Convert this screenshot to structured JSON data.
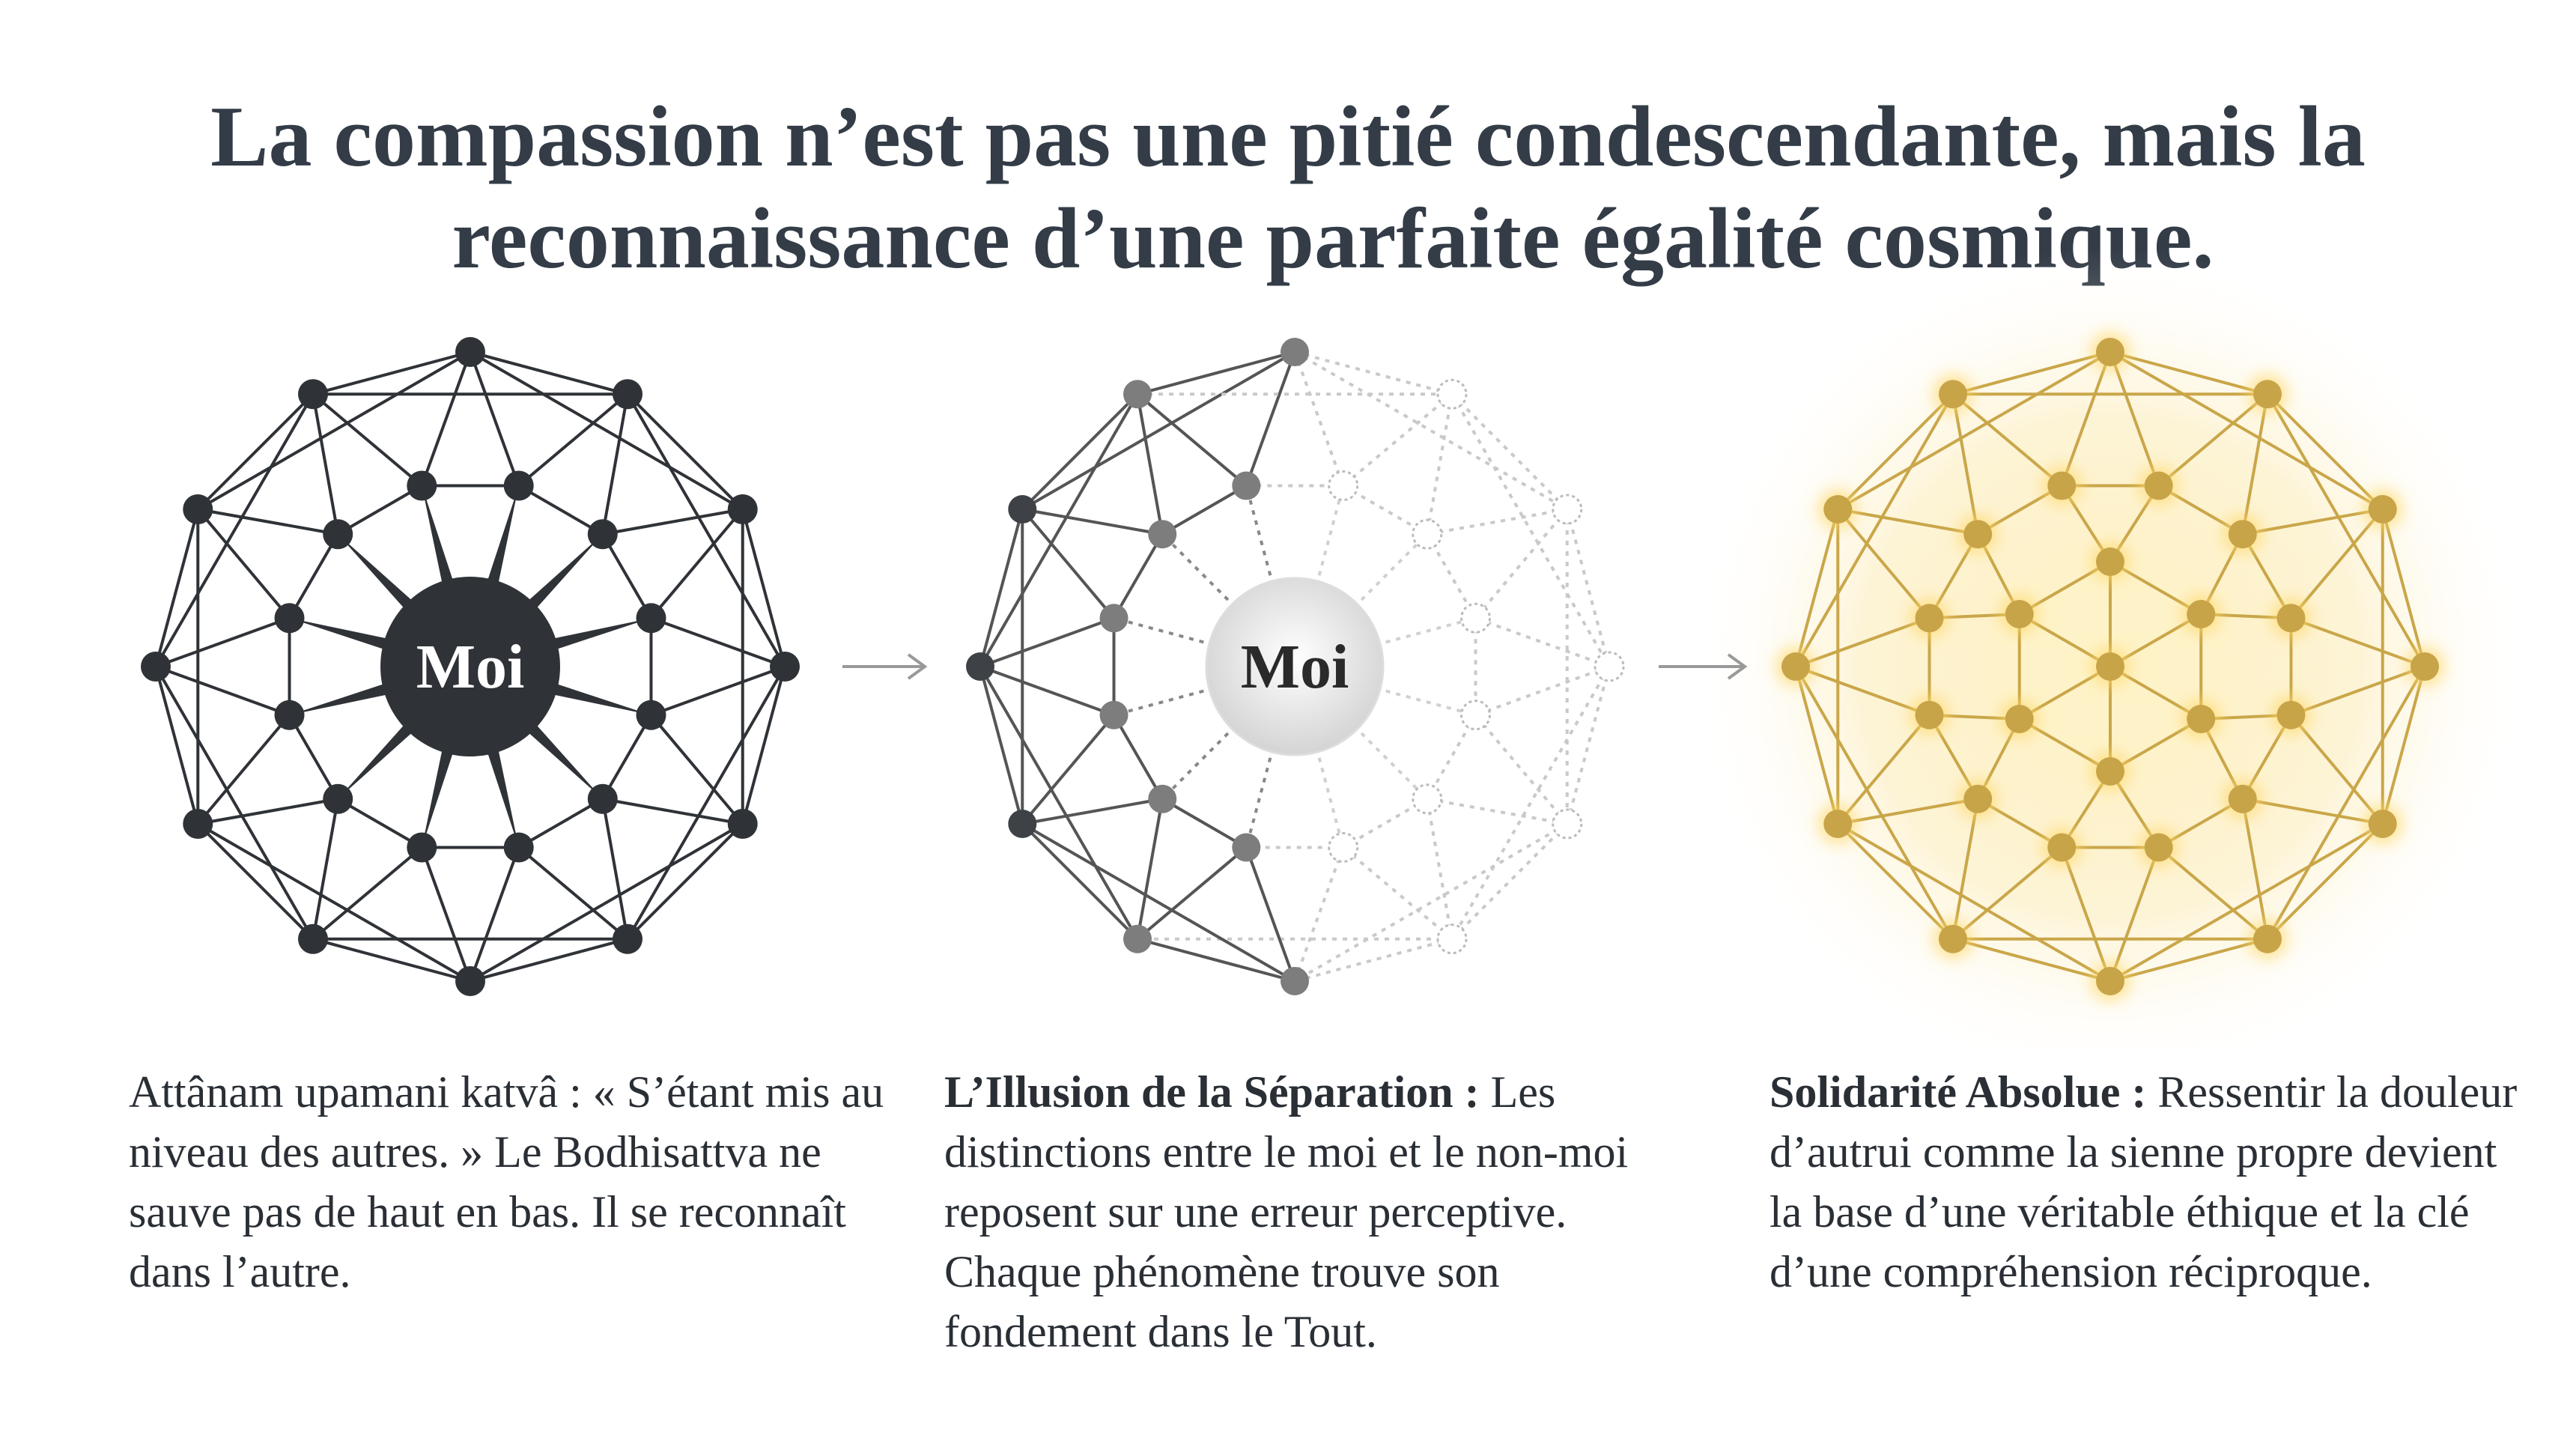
{
  "title_lines": [
    "La compassion n’est pas une pitié condescendante, mais la",
    "reconnaissance d’une parfaite égalité cosmique."
  ],
  "panels": [
    {
      "center_label": "Moi",
      "caption": "Attânam upamani katvâ : « S’étant mis au niveau des autres. » Le Bodhisattva ne sauve pas de haut en bas. Il se reconnaît dans l’autre."
    },
    {
      "center_label": "Moi",
      "caption_heading": "L’Illusion de la Séparation :",
      "caption": "Les distinctions entre le moi et le non-moi reposent sur une erreur perceptive. Chaque phénomène trouve son fondement dans le Tout."
    },
    {
      "caption_heading": "Solidarité Absolue :",
      "caption": "Ressentir la douleur d’autrui comme la sienne propre devient la base d’une véritable éthique et la clé d’une compréhension réciproque."
    }
  ]
}
